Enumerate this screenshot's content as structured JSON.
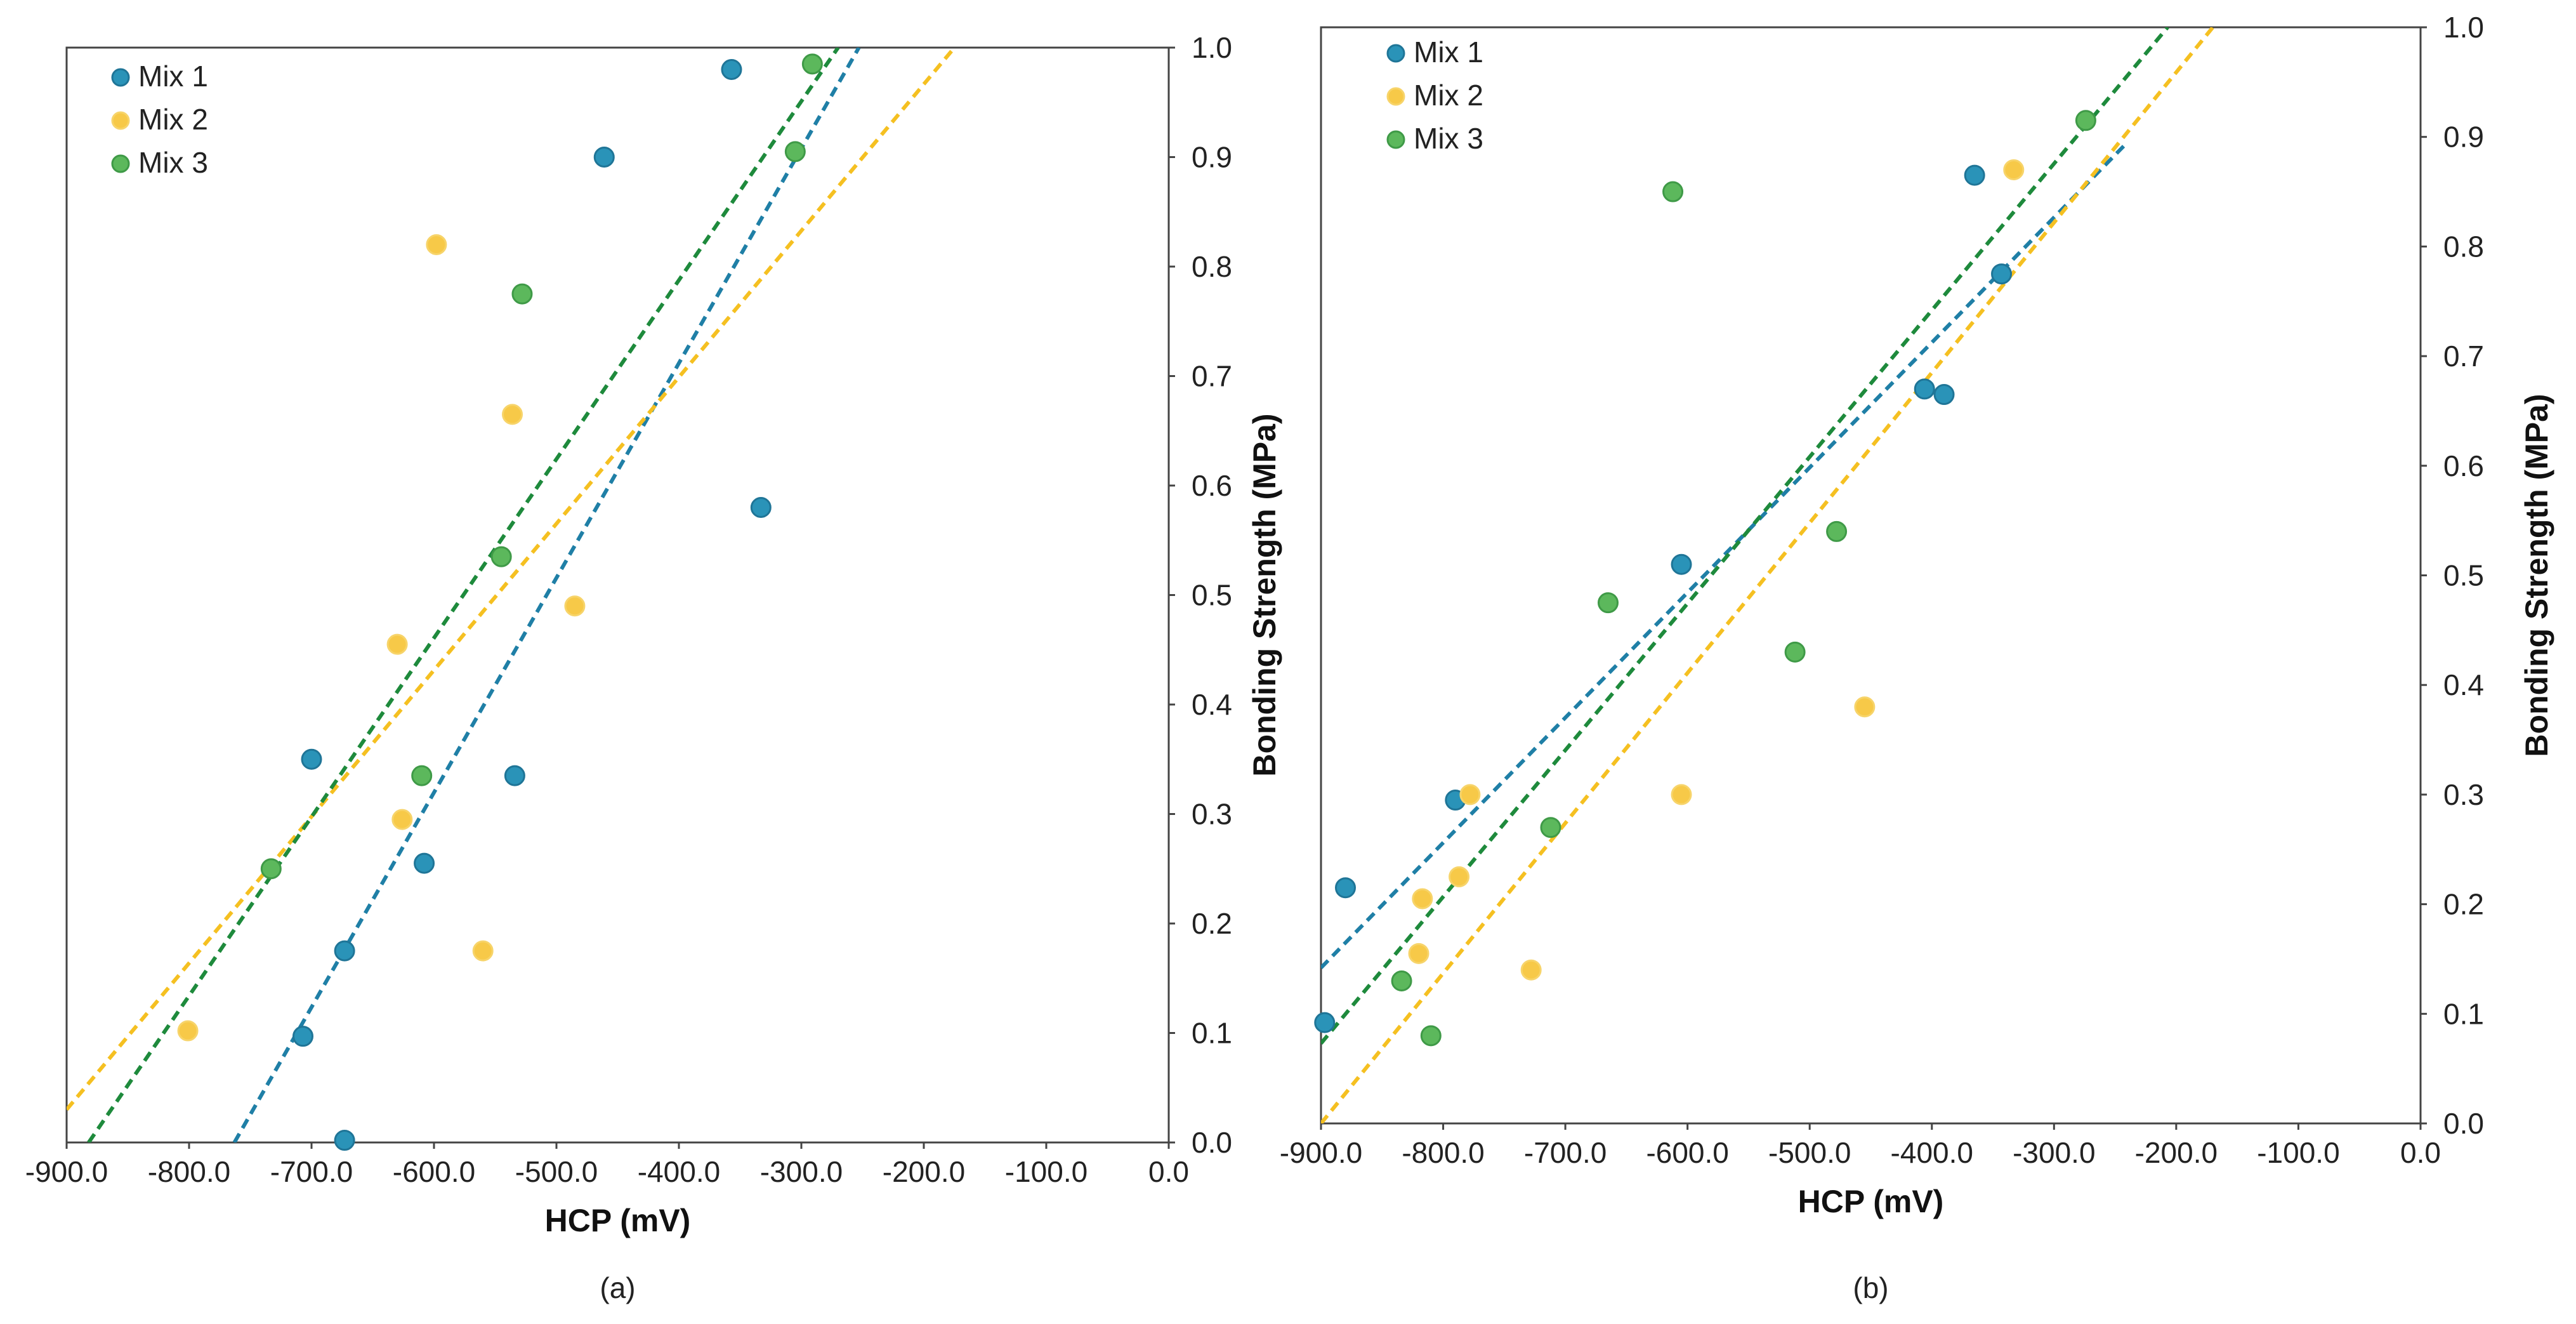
{
  "chart_data": [
    {
      "type": "scatter",
      "panel": "a",
      "caption": "(a)",
      "xlabel": "HCP (mV)",
      "ylabel": "Bonding Strength (MPa)",
      "xlim": [
        -900,
        0
      ],
      "ylim": [
        0,
        1
      ],
      "xticks": [
        "-900.0",
        "-800.0",
        "-700.0",
        "-600.0",
        "-500.0",
        "-400.0",
        "-300.0",
        "-200.0",
        "-100.0",
        "0.0"
      ],
      "yticks": [
        "0.0",
        "0.1",
        "0.2",
        "0.3",
        "0.4",
        "0.5",
        "0.6",
        "0.7",
        "0.8",
        "0.9",
        "1.0"
      ],
      "legend_position": "top-left",
      "series": [
        {
          "name": "Mix 1",
          "color": "#2a93b8",
          "points": [
            [
              -357,
              0.98
            ],
            [
              -461,
              0.9
            ],
            [
              -333,
              0.58
            ],
            [
              -700,
              0.35
            ],
            [
              -534,
              0.335
            ],
            [
              -608,
              0.255
            ],
            [
              -673,
              0.175
            ],
            [
              -707,
              0.097
            ],
            [
              -673,
              0.002
            ]
          ],
          "trend": [
            [
              -763,
              0.0
            ],
            [
              -253,
              1.0
            ]
          ]
        },
        {
          "name": "Mix 2",
          "color": "#f7c948",
          "points": [
            [
              -598,
              0.82
            ],
            [
              -536,
              0.665
            ],
            [
              -630,
              0.455
            ],
            [
              -485,
              0.49
            ],
            [
              -626,
              0.295
            ],
            [
              -560,
              0.175
            ],
            [
              -801,
              0.102
            ]
          ],
          "trend": [
            [
              -900,
              0.03
            ],
            [
              -175,
              1.0
            ]
          ]
        },
        {
          "name": "Mix 3",
          "color": "#5cb85c",
          "points": [
            [
              -291,
              0.985
            ],
            [
              -305,
              0.905
            ],
            [
              -528,
              0.775
            ],
            [
              -545,
              0.535
            ],
            [
              -610,
              0.335
            ],
            [
              -733,
              0.25
            ]
          ],
          "trend": [
            [
              -882,
              0.0
            ],
            [
              -270,
              1.0
            ]
          ]
        }
      ]
    },
    {
      "type": "scatter",
      "panel": "b",
      "caption": "(b)",
      "xlabel": "HCP (mV)",
      "ylabel": "Bonding Strength (MPa)",
      "xlim": [
        -900,
        0
      ],
      "ylim": [
        0,
        1
      ],
      "xticks": [
        "-900.0",
        "-800.0",
        "-700.0",
        "-600.0",
        "-500.0",
        "-400.0",
        "-300.0",
        "-200.0",
        "-100.0",
        "0.0"
      ],
      "yticks": [
        "0.0",
        "0.1",
        "0.2",
        "0.3",
        "0.4",
        "0.5",
        "0.6",
        "0.7",
        "0.8",
        "0.9",
        "1.0"
      ],
      "legend_position": "top-left",
      "series": [
        {
          "name": "Mix 1",
          "color": "#2a93b8",
          "points": [
            [
              -365,
              0.865
            ],
            [
              -343,
              0.775
            ],
            [
              -406,
              0.67
            ],
            [
              -390,
              0.665
            ],
            [
              -605,
              0.51
            ],
            [
              -790,
              0.295
            ],
            [
              -880,
              0.215
            ],
            [
              -897,
              0.092
            ]
          ],
          "trend": [
            [
              -900,
              0.142
            ],
            [
              -240,
              0.895
            ]
          ]
        },
        {
          "name": "Mix 2",
          "color": "#f7c948",
          "points": [
            [
              -333,
              0.87
            ],
            [
              -455,
              0.38
            ],
            [
              -605,
              0.3
            ],
            [
              -778,
              0.3
            ],
            [
              -787,
              0.225
            ],
            [
              -817,
              0.205
            ],
            [
              -820,
              0.155
            ],
            [
              -728,
              0.14
            ]
          ],
          "trend": [
            [
              -900,
              0.0
            ],
            [
              -170,
              1.0
            ]
          ]
        },
        {
          "name": "Mix 3",
          "color": "#5cb85c",
          "points": [
            [
              -612,
              0.85
            ],
            [
              -274,
              0.915
            ],
            [
              -478,
              0.54
            ],
            [
              -665,
              0.475
            ],
            [
              -512,
              0.43
            ],
            [
              -712,
              0.27
            ],
            [
              -834,
              0.13
            ],
            [
              -810,
              0.08
            ]
          ],
          "trend": [
            [
              -900,
              0.073
            ],
            [
              -207,
              1.0
            ]
          ]
        }
      ]
    }
  ]
}
